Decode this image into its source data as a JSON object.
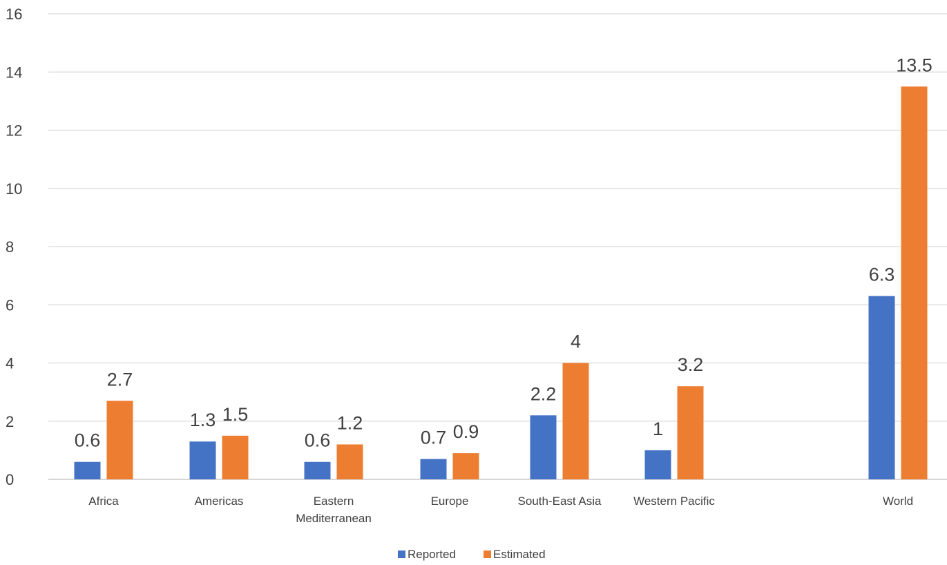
{
  "chart_data": {
    "type": "bar",
    "title": "",
    "xlabel": "",
    "ylabel": "",
    "ylim": [
      0,
      16
    ],
    "yticks": [
      0,
      2,
      4,
      6,
      8,
      10,
      12,
      14,
      16
    ],
    "grid": true,
    "legend_position": "bottom",
    "categories": [
      [
        "Africa"
      ],
      [
        "Americas"
      ],
      [
        "Eastern",
        "Mediterranean"
      ],
      [
        "Europe"
      ],
      [
        "South-East Asia"
      ],
      [
        "Western Pacific"
      ],
      [
        "World"
      ]
    ],
    "category_names": [
      "Africa",
      "Americas",
      "Eastern Mediterranean",
      "Europe",
      "South-East Asia",
      "Western Pacific",
      "World"
    ],
    "series": [
      {
        "name": "Reported",
        "color": "#4472C4",
        "values": [
          0.6,
          1.3,
          0.6,
          0.7,
          2.2,
          1,
          6.3
        ]
      },
      {
        "name": "Estimated",
        "color": "#ED7D31",
        "values": [
          2.7,
          1.5,
          1.2,
          0.9,
          4,
          3.2,
          13.5
        ]
      }
    ],
    "data_labels": true
  }
}
